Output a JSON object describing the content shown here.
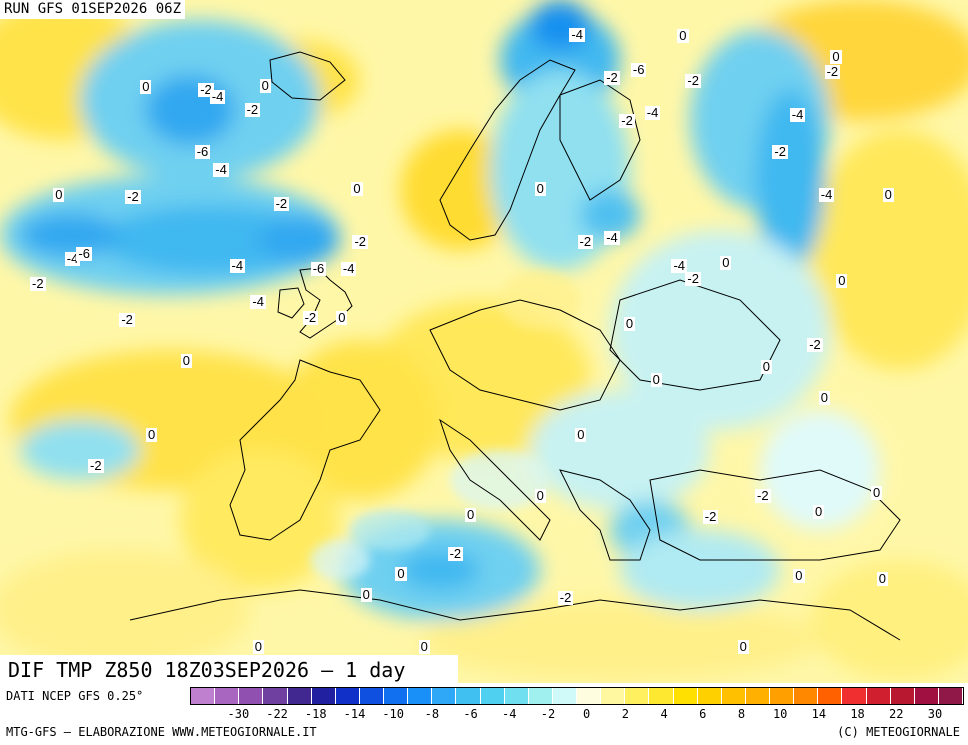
{
  "run_label": "RUN GFS 01SEP2026 06Z",
  "map_title": "DIF TMP Z850 18Z03SEP2026 – 1 day",
  "data_source": "DATI NCEP GFS 0.25°",
  "credit": "MTG-GFS – ELABORAZIONE WWW.METEOGIORNALE.IT",
  "copyright": "(C) METEOGIORNALE",
  "legend": {
    "tick_labels": [
      "-30",
      "-22",
      "-18",
      "-14",
      "-10",
      "-8",
      "-6",
      "-4",
      "-2",
      "0",
      "2",
      "4",
      "6",
      "8",
      "10",
      "14",
      "18",
      "22",
      "30"
    ],
    "colors": [
      "#c080d0",
      "#a866c0",
      "#9050b0",
      "#7040a0",
      "#402890",
      "#2020a0",
      "#1030c8",
      "#1050e0",
      "#1070f0",
      "#1890f8",
      "#30a8f8",
      "#40c0f0",
      "#50d0f0",
      "#70e0f0",
      "#a0f0f0",
      "#d0fafa",
      "#fffde0",
      "#fff8a0",
      "#fff060",
      "#ffe830",
      "#ffe000",
      "#ffd000",
      "#ffc000",
      "#ffb000",
      "#ffa000",
      "#ff8800",
      "#ff6000",
      "#f03030",
      "#d02030",
      "#b81830",
      "#a01040",
      "#901848"
    ]
  },
  "contour_labels": [
    {
      "text": "0",
      "lon": -20.5,
      "lat": 71.8
    },
    {
      "text": "-2",
      "lon": -15.5,
      "lat": 71.5
    },
    {
      "text": "-4",
      "lon": -14.5,
      "lat": 71.0
    },
    {
      "text": "0",
      "lon": -10.2,
      "lat": 71.9
    },
    {
      "text": "-2",
      "lon": -11.5,
      "lat": 69.9
    },
    {
      "text": "-6",
      "lon": -15.8,
      "lat": 66.5
    },
    {
      "text": "-4",
      "lon": -14.2,
      "lat": 65.0
    },
    {
      "text": "0",
      "lon": -28.0,
      "lat": 63.0
    },
    {
      "text": "-2",
      "lon": -21.8,
      "lat": 62.8
    },
    {
      "text": "-2",
      "lon": -9.0,
      "lat": 62.3
    },
    {
      "text": "0",
      "lon": -2.3,
      "lat": 63.5
    },
    {
      "text": "-4",
      "lon": -27.0,
      "lat": 57.8
    },
    {
      "text": "-6",
      "lon": -26.0,
      "lat": 58.2
    },
    {
      "text": "-4",
      "lon": -12.8,
      "lat": 57.2
    },
    {
      "text": "-6",
      "lon": -5.8,
      "lat": 57.0
    },
    {
      "text": "-4",
      "lon": -3.2,
      "lat": 57.0
    },
    {
      "text": "-2",
      "lon": -2.2,
      "lat": 59.2
    },
    {
      "text": "-2",
      "lon": -30.0,
      "lat": 55.8
    },
    {
      "text": "-4",
      "lon": -11.0,
      "lat": 54.3
    },
    {
      "text": "-2",
      "lon": -22.3,
      "lat": 52.8
    },
    {
      "text": "-2",
      "lon": -6.5,
      "lat": 53.0
    },
    {
      "text": "0",
      "lon": -3.6,
      "lat": 53.0
    },
    {
      "text": "0",
      "lon": -17.0,
      "lat": 49.5
    },
    {
      "text": "0",
      "lon": -20.0,
      "lat": 43.5
    },
    {
      "text": "-2",
      "lon": -25.0,
      "lat": 41.0
    },
    {
      "text": "-4",
      "lon": 16.5,
      "lat": 76.0
    },
    {
      "text": "0",
      "lon": 25.8,
      "lat": 75.9
    },
    {
      "text": "-6",
      "lon": 21.8,
      "lat": 73.2
    },
    {
      "text": "-2",
      "lon": 19.5,
      "lat": 72.5
    },
    {
      "text": "-2",
      "lon": 26.5,
      "lat": 72.3
    },
    {
      "text": "-4",
      "lon": 23.0,
      "lat": 69.7
    },
    {
      "text": "-2",
      "lon": 20.8,
      "lat": 69.0
    },
    {
      "text": "0",
      "lon": 13.5,
      "lat": 63.5
    },
    {
      "text": "-2",
      "lon": 17.2,
      "lat": 59.2
    },
    {
      "text": "-4",
      "lon": 19.5,
      "lat": 59.5
    },
    {
      "text": "-4",
      "lon": 25.3,
      "lat": 57.2
    },
    {
      "text": "-2",
      "lon": 26.5,
      "lat": 56.2
    },
    {
      "text": "0",
      "lon": 29.5,
      "lat": 57.5
    },
    {
      "text": "0",
      "lon": 21.2,
      "lat": 52.5
    },
    {
      "text": "-2",
      "lon": 38.5,
      "lat": 73.0
    },
    {
      "text": "0",
      "lon": 39.0,
      "lat": 74.2
    },
    {
      "text": "-4",
      "lon": 35.5,
      "lat": 69.5
    },
    {
      "text": "-2",
      "lon": 34.0,
      "lat": 66.5
    },
    {
      "text": "-4",
      "lon": 38.0,
      "lat": 63.0
    },
    {
      "text": "0",
      "lon": 43.5,
      "lat": 63.0
    },
    {
      "text": "0",
      "lon": 39.5,
      "lat": 56.0
    },
    {
      "text": "-2",
      "lon": 37.0,
      "lat": 50.8
    },
    {
      "text": "0",
      "lon": 33.0,
      "lat": 49.0
    },
    {
      "text": "0",
      "lon": 23.5,
      "lat": 48.0
    },
    {
      "text": "0",
      "lon": 38.0,
      "lat": 46.5
    },
    {
      "text": "0",
      "lon": 17.0,
      "lat": 43.5
    },
    {
      "text": "-2",
      "lon": 32.5,
      "lat": 38.5
    },
    {
      "text": "0",
      "lon": 42.5,
      "lat": 38.8
    },
    {
      "text": "0",
      "lon": 37.5,
      "lat": 37.2
    },
    {
      "text": "-2",
      "lon": 28.0,
      "lat": 36.8
    },
    {
      "text": "0",
      "lon": 13.5,
      "lat": 38.5
    },
    {
      "text": "0",
      "lon": 7.5,
      "lat": 37.0
    },
    {
      "text": "-2",
      "lon": 6.0,
      "lat": 33.8
    },
    {
      "text": "0",
      "lon": 1.5,
      "lat": 32.2
    },
    {
      "text": "0",
      "lon": -1.5,
      "lat": 30.5
    },
    {
      "text": "-2",
      "lon": 15.5,
      "lat": 30.2
    },
    {
      "text": "0",
      "lon": 35.8,
      "lat": 32.0
    },
    {
      "text": "0",
      "lon": 43.0,
      "lat": 31.8
    },
    {
      "text": "0",
      "lon": 3.5,
      "lat": 25.8
    },
    {
      "text": "0",
      "lon": -10.8,
      "lat": 24.3
    },
    {
      "text": "0",
      "lon": 31.0,
      "lat": 23.3
    }
  ]
}
